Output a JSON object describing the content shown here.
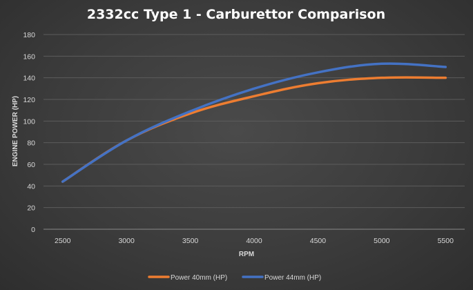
{
  "chart_data": {
    "type": "line",
    "title": "2332cc Type 1 - Carburettor Comparison",
    "xlabel": "RPM",
    "ylabel": "ENGINE POWER (HP)",
    "x": [
      2500,
      3000,
      3500,
      4000,
      4500,
      5000,
      5500
    ],
    "xlim": [
      2350,
      5650
    ],
    "ylim": [
      0,
      180
    ],
    "yticks": [
      0,
      20,
      40,
      60,
      80,
      100,
      120,
      140,
      160,
      180
    ],
    "grid": true,
    "legend_position": "bottom",
    "series": [
      {
        "name": "Power 40mm (HP)",
        "color": "#ed7d31",
        "values": [
          44,
          82,
          107,
          123,
          135,
          140,
          140
        ]
      },
      {
        "name": "Power 44mm (HP)",
        "color": "#4472c4",
        "values": [
          44,
          82,
          109,
          130,
          145,
          153,
          150
        ]
      }
    ]
  }
}
